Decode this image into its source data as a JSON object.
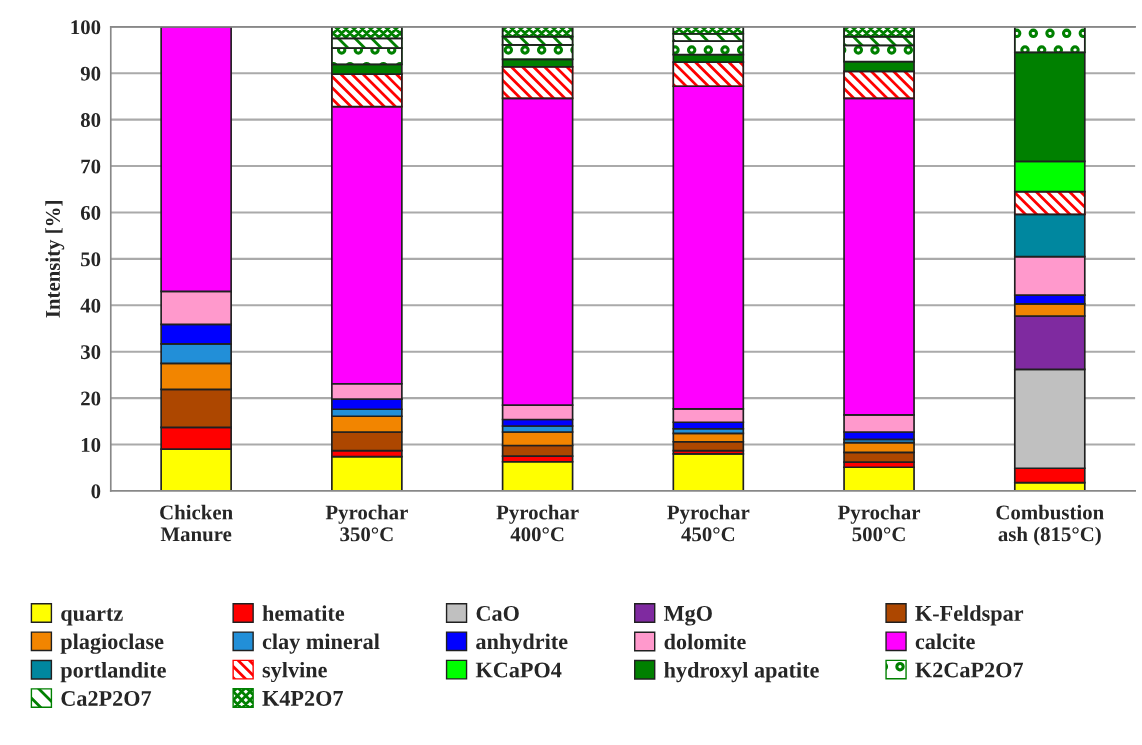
{
  "chart_data": {
    "type": "bar",
    "stacked": true,
    "ylabel": "Intensity [%]",
    "categories": [
      "Chicken\nManure",
      "Pyrochar\n350°C",
      "Pyrochar\n400°C",
      "Pyrochar\n450°C",
      "Pyrochar\n500°C",
      "Combustion\nash (815°C)"
    ],
    "ylim": [
      0,
      100
    ],
    "yticks": [
      0,
      10,
      20,
      30,
      40,
      50,
      60,
      70,
      80,
      90,
      100
    ],
    "grid": "y",
    "legend": "bottom",
    "series": [
      {
        "name": "quartz",
        "color": "#ffff00",
        "values": [
          9.0,
          7.4,
          6.3,
          8.0,
          5.1,
          1.8
        ]
      },
      {
        "name": "hematite",
        "color": "#ff0000",
        "values": [
          4.7,
          1.3,
          1.2,
          0.7,
          1.1,
          3.1
        ]
      },
      {
        "name": "CaO",
        "color": "#c0c0c0",
        "values": [
          null,
          null,
          null,
          null,
          null,
          21.3
        ]
      },
      {
        "name": "MgO",
        "color": "#7f2aa0",
        "values": [
          null,
          null,
          null,
          null,
          null,
          11.5
        ]
      },
      {
        "name": "K-Feldspar",
        "color": "#ad4700",
        "values": [
          8.2,
          4.0,
          2.3,
          1.9,
          2.1,
          null
        ]
      },
      {
        "name": "plagioclase",
        "color": "#f28500",
        "values": [
          5.6,
          3.4,
          2.9,
          1.8,
          2.1,
          2.6
        ]
      },
      {
        "name": "clay mineral",
        "color": "#228fd8",
        "values": [
          4.2,
          1.5,
          1.3,
          1.0,
          0.7,
          null
        ]
      },
      {
        "name": "anhydrite",
        "color": "#0000ff",
        "values": [
          4.2,
          2.2,
          1.4,
          1.4,
          1.6,
          1.9
        ]
      },
      {
        "name": "dolomite",
        "color": "#ff99cc",
        "values": [
          7.1,
          3.3,
          3.1,
          2.9,
          3.7,
          8.3
        ]
      },
      {
        "name": "calcite",
        "color": "#ff00ff",
        "values": [
          57.0,
          59.7,
          66.1,
          69.5,
          68.2,
          null
        ]
      },
      {
        "name": "portlandite",
        "color": "#00879f",
        "values": [
          null,
          null,
          null,
          null,
          null,
          9.1
        ]
      },
      {
        "name": "sylvine",
        "color": "#ff0000",
        "values": [
          null,
          7.0,
          6.8,
          5.2,
          5.8,
          4.9
        ]
      },
      {
        "name": "KCaPO4",
        "color": "#00ff00",
        "values": [
          null,
          null,
          null,
          null,
          null,
          6.5
        ]
      },
      {
        "name": "hydroxyl apatite",
        "color": "#008000",
        "values": [
          null,
          2.1,
          1.6,
          1.6,
          2.1,
          23.5
        ]
      },
      {
        "name": "K2CaP2O7",
        "color": "#008000",
        "values": [
          null,
          3.5,
          3.1,
          2.9,
          3.5,
          5.5
        ]
      },
      {
        "name": "Ca2P2O7",
        "color": "#008000",
        "values": [
          null,
          2.1,
          1.8,
          1.6,
          1.9,
          null
        ]
      },
      {
        "name": "K4P2O7",
        "color": "#008000",
        "values": [
          null,
          2.5,
          2.1,
          1.5,
          2.1,
          null
        ]
      }
    ]
  }
}
